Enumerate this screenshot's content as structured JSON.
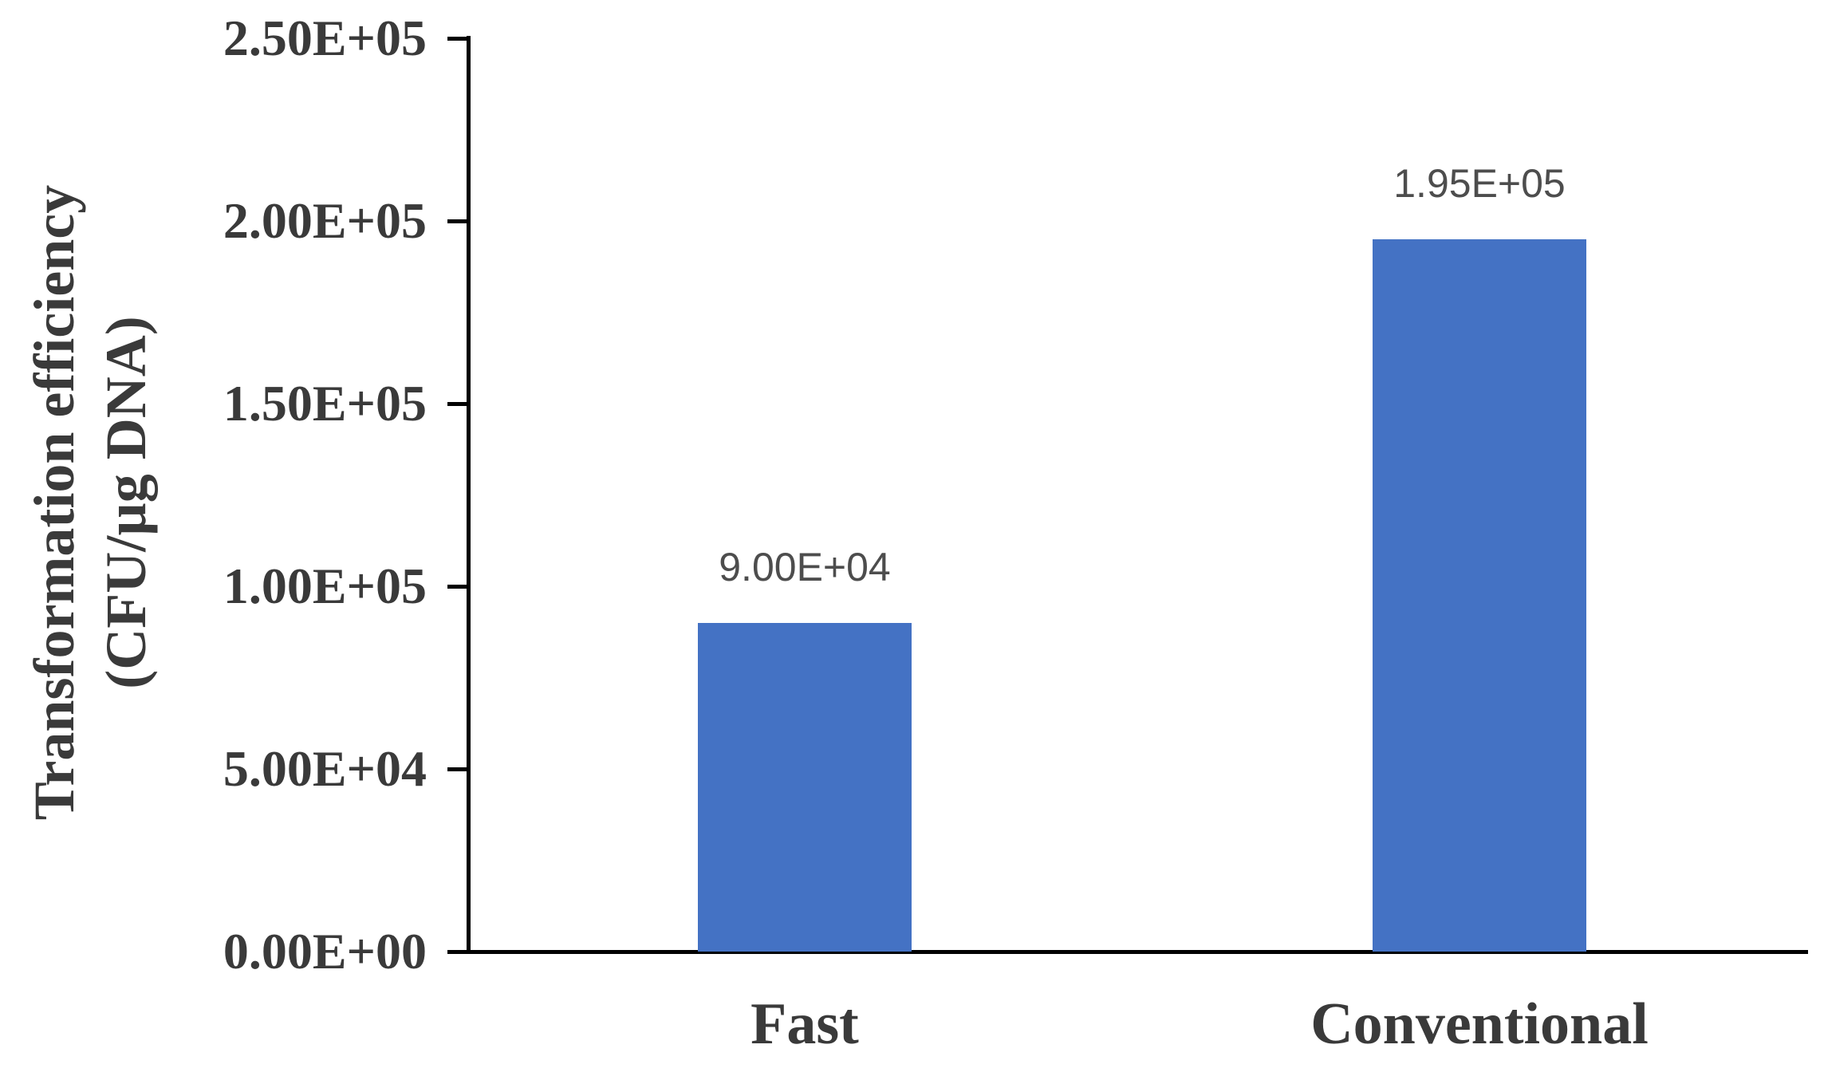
{
  "chart_data": {
    "type": "bar",
    "title": "",
    "categories": [
      "Fast",
      "Conventional"
    ],
    "values": [
      90000,
      195000
    ],
    "value_labels": [
      "9.00E+04",
      "1.95E+05"
    ],
    "ylabel": "Transformation efficiency (CFU/µg DNA)",
    "ylabel_lines": [
      "Transformation efficiency",
      "(CFU/µg DNA)"
    ],
    "xlabel": "",
    "ylim": [
      0,
      250000
    ],
    "ytick_interval": 50000,
    "yticks": [
      "0.00E+00",
      "5.00E+04",
      "1.00E+05",
      "1.50E+05",
      "2.00E+05",
      "2.50E+05"
    ],
    "grid": false,
    "legend": false,
    "bar_color": "#4472C4",
    "axis_line_color": "#000000",
    "axis_text_color": "#3a3a3a",
    "data_label_color": "#4d4d4d",
    "background_color": "#ffffff"
  }
}
